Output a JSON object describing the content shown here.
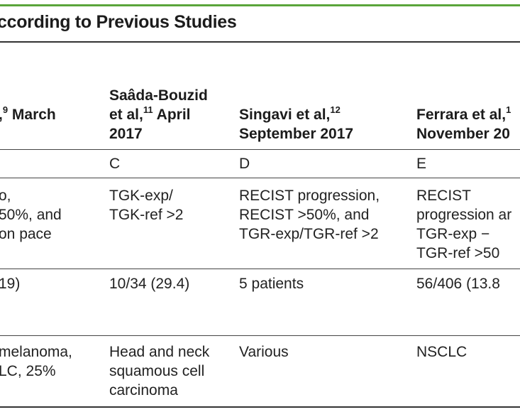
{
  "title": "ccording to Previous Studies",
  "columns": [
    {
      "header_line1": ",",
      "header_sup": "9",
      "header_line1_tail": " March",
      "header_line2": "",
      "header_line3": "",
      "label": "",
      "definition": [
        "o,",
        "50%, and",
        "on pace"
      ],
      "incidence": "19)",
      "tumor": [
        "melanoma,",
        "LC, 25%"
      ]
    },
    {
      "header_line1": "Saâda-Bouzid",
      "header_line2a": "et al,",
      "header_sup": "11",
      "header_line2b": " April",
      "header_line3": "2017",
      "label": "C",
      "definition": [
        "TGK-exp/",
        "TGK-ref >2"
      ],
      "incidence": "10/34 (29.4)",
      "tumor": [
        "Head and neck",
        "squamous cell",
        "carcinoma"
      ]
    },
    {
      "header_line2a": "Singavi et al,",
      "header_sup": "12",
      "header_line3": "September 2017",
      "label": "D",
      "definition": [
        "RECIST progression,",
        "RECIST >50%, and",
        "TGR-exp/TGR-ref >2"
      ],
      "incidence": "5 patients",
      "tumor": [
        "Various"
      ]
    },
    {
      "header_line2a": "Ferrara et al,",
      "header_sup": "1",
      "header_line3": "November 20",
      "label": "E",
      "definition": [
        "RECIST",
        "progression ar",
        "TGR-exp −",
        "TGR-ref >50"
      ],
      "incidence": "56/406 (13.8",
      "tumor": [
        "NSCLC"
      ]
    }
  ]
}
